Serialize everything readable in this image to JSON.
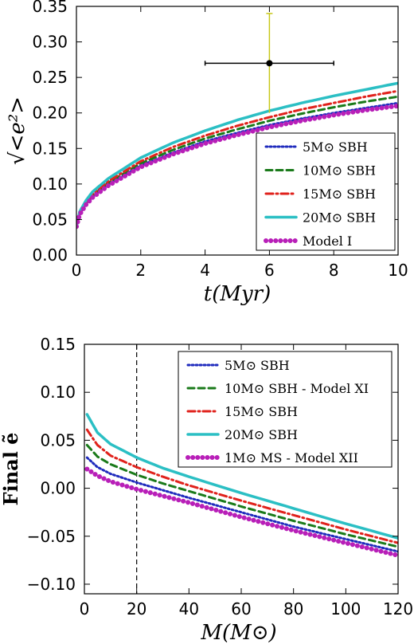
{
  "chart_data": [
    {
      "type": "line",
      "xlabel": "t(Myr)",
      "ylabel": "√<e²>",
      "xlim": [
        0,
        10
      ],
      "ylim": [
        0.0,
        0.35
      ],
      "xticks": [
        "0",
        "2",
        "4",
        "6",
        "8",
        "10"
      ],
      "yticks": [
        "0.00",
        "0.05",
        "0.10",
        "0.15",
        "0.20",
        "0.25",
        "0.30",
        "0.35"
      ],
      "legend_position": "lower-right",
      "series": [
        {
          "name": "5M⊙ SBH",
          "color": "#1f2bbd",
          "style": "dotted",
          "x": [
            0,
            0.1,
            0.3,
            0.5,
            1,
            2,
            3,
            4,
            5,
            6,
            7,
            8,
            9,
            10
          ],
          "values": [
            0.04,
            0.058,
            0.072,
            0.082,
            0.1,
            0.126,
            0.144,
            0.16,
            0.172,
            0.183,
            0.192,
            0.2,
            0.207,
            0.214
          ]
        },
        {
          "name": "10M⊙ SBH",
          "color": "#1a7a1a",
          "style": "dashed",
          "x": [
            0,
            0.1,
            0.3,
            0.5,
            1,
            2,
            3,
            4,
            5,
            6,
            7,
            8,
            9,
            10
          ],
          "values": [
            0.04,
            0.059,
            0.073,
            0.084,
            0.102,
            0.129,
            0.148,
            0.164,
            0.177,
            0.189,
            0.199,
            0.208,
            0.216,
            0.223
          ]
        },
        {
          "name": "15M⊙ SBH",
          "color": "#e0221c",
          "style": "dashdot",
          "x": [
            0,
            0.1,
            0.3,
            0.5,
            1,
            2,
            3,
            4,
            5,
            6,
            7,
            8,
            9,
            10
          ],
          "values": [
            0.04,
            0.06,
            0.075,
            0.086,
            0.104,
            0.132,
            0.152,
            0.168,
            0.182,
            0.194,
            0.205,
            0.214,
            0.223,
            0.231
          ]
        },
        {
          "name": "20M⊙ SBH",
          "color": "#2bbfc4",
          "style": "solid",
          "x": [
            0,
            0.1,
            0.3,
            0.5,
            1,
            2,
            3,
            4,
            5,
            6,
            7,
            8,
            9,
            10
          ],
          "values": [
            0.04,
            0.061,
            0.077,
            0.089,
            0.108,
            0.137,
            0.158,
            0.175,
            0.19,
            0.203,
            0.214,
            0.224,
            0.233,
            0.242
          ]
        },
        {
          "name": "Model I",
          "color": "#b81fb8",
          "style": "dots",
          "x": [
            0,
            0.1,
            0.3,
            0.5,
            1,
            2,
            3,
            4,
            5,
            6,
            7,
            8,
            9,
            10
          ],
          "values": [
            0.04,
            0.057,
            0.071,
            0.081,
            0.098,
            0.124,
            0.142,
            0.157,
            0.169,
            0.18,
            0.189,
            0.197,
            0.204,
            0.21
          ]
        }
      ],
      "annotations": {
        "data_point": {
          "x": 6,
          "y": 0.27,
          "xerr": [
            4,
            8
          ]
        },
        "errorbar": {
          "x": 6,
          "y_low": 0.2,
          "y_high": 0.34,
          "color": "#c8c81a"
        }
      }
    },
    {
      "type": "line",
      "xlabel": "M(M⊙)",
      "ylabel": "Final ẽ",
      "xlim": [
        0,
        120
      ],
      "ylim": [
        -0.11,
        0.15
      ],
      "xticks": [
        "0",
        "20",
        "40",
        "60",
        "80",
        "100",
        "120"
      ],
      "yticks": [
        "−0.10",
        "−0.05",
        "0.00",
        "0.05",
        "0.10",
        "0.15"
      ],
      "legend_position": "upper-right",
      "vline": {
        "x": 20,
        "style": "dashed",
        "color": "#000000"
      },
      "series": [
        {
          "name": "5M⊙ SBH",
          "color": "#1f2bbd",
          "style": "dotted",
          "x": [
            1,
            5,
            10,
            20,
            30,
            40,
            60,
            80,
            100,
            120
          ],
          "values": [
            0.032,
            0.022,
            0.015,
            0.006,
            -0.002,
            -0.01,
            -0.025,
            -0.04,
            -0.053,
            -0.066
          ]
        },
        {
          "name": "10M⊙ SBH - Model XI",
          "color": "#1a7a1a",
          "style": "dashed",
          "x": [
            1,
            5,
            10,
            20,
            30,
            40,
            60,
            80,
            100,
            120
          ],
          "values": [
            0.045,
            0.033,
            0.025,
            0.014,
            0.005,
            -0.003,
            -0.019,
            -0.034,
            -0.048,
            -0.061
          ]
        },
        {
          "name": "15M⊙ SBH",
          "color": "#e0221c",
          "style": "dashdot",
          "x": [
            1,
            5,
            10,
            20,
            30,
            40,
            60,
            80,
            100,
            120
          ],
          "values": [
            0.061,
            0.045,
            0.034,
            0.022,
            0.012,
            0.003,
            -0.013,
            -0.028,
            -0.043,
            -0.057
          ]
        },
        {
          "name": "20M⊙ SBH",
          "color": "#2bbfc4",
          "style": "solid",
          "x": [
            1,
            5,
            10,
            20,
            30,
            40,
            60,
            80,
            100,
            120
          ],
          "values": [
            0.077,
            0.058,
            0.046,
            0.032,
            0.021,
            0.012,
            -0.005,
            -0.021,
            -0.037,
            -0.052
          ]
        },
        {
          "name": "1M⊙ MS - Model XII",
          "color": "#b81fb8",
          "style": "dots",
          "x": [
            1,
            5,
            10,
            20,
            30,
            40,
            60,
            80,
            100,
            120
          ],
          "values": [
            0.02,
            0.013,
            0.007,
            -0.001,
            -0.008,
            -0.015,
            -0.03,
            -0.044,
            -0.057,
            -0.07
          ]
        }
      ]
    }
  ]
}
